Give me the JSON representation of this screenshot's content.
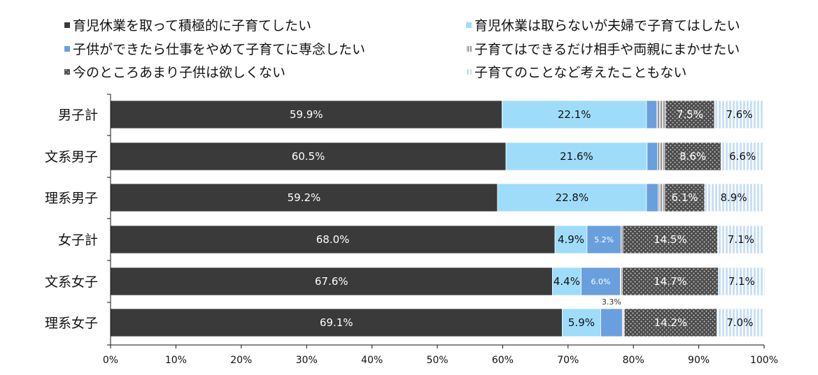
{
  "chart_data": {
    "type": "bar",
    "orientation": "horizontal",
    "stacked": true,
    "percent": true,
    "categories": [
      "男子計",
      "文系男子",
      "理系男子",
      "女子計",
      "文系女子",
      "理系女子"
    ],
    "series": [
      {
        "name": "育児休業を取って積極的に子育てしたい",
        "values": [
          59.9,
          60.5,
          59.2,
          68.0,
          67.6,
          69.1
        ],
        "labels": [
          "59.9%",
          "60.5%",
          "59.2%",
          "68.0%",
          "67.6%",
          "69.1%"
        ],
        "color": "#3a3a3a",
        "pattern": "solid",
        "label_color": "#ffffff"
      },
      {
        "name": "育児休業は取らないが夫婦で子育てはしたい",
        "values": [
          22.1,
          21.6,
          22.8,
          4.9,
          4.4,
          5.9
        ],
        "labels": [
          "22.1%",
          "21.6%",
          "22.8%",
          "4.9%",
          "4.4%",
          "5.9%"
        ],
        "color": "#9fdcfa",
        "pattern": "solid",
        "label_color": "#111111"
      },
      {
        "name": "子供ができたら仕事をやめて子育てに専念したい",
        "values": [
          1.6,
          1.6,
          1.8,
          5.2,
          6.0,
          3.3
        ],
        "labels": [
          "",
          "",
          "",
          "5.2%",
          "6.0%",
          "3.3%"
        ],
        "color": "#6a9fde",
        "pattern": "solid",
        "label_color": "#ffffff"
      },
      {
        "name": "子育てはできるだけ相手や両親にまかせたい",
        "values": [
          1.3,
          1.1,
          1.0,
          0.3,
          0.3,
          0.3
        ],
        "labels": [
          "",
          "",
          "",
          "",
          "",
          ""
        ],
        "color": "#c8c8c8",
        "pattern": "stripes-gray",
        "label_color": "#111111"
      },
      {
        "name": "今のところあまり子供は欲しくない",
        "values": [
          7.5,
          8.6,
          6.1,
          14.5,
          14.7,
          14.2
        ],
        "labels": [
          "7.5%",
          "8.6%",
          "6.1%",
          "14.5%",
          "14.7%",
          "14.2%"
        ],
        "color": "#555555",
        "pattern": "dots",
        "label_color": "#ffffff"
      },
      {
        "name": "子育てのことなど考えたこともない",
        "values": [
          7.6,
          6.6,
          8.9,
          7.1,
          7.1,
          7.0
        ],
        "labels": [
          "7.6%",
          "6.6%",
          "8.9%",
          "7.1%",
          "7.1%",
          "7.0%"
        ],
        "color": "#bcd8f5",
        "pattern": "stripes-blue",
        "label_color": "#111111"
      }
    ],
    "x_ticks": [
      "0%",
      "10%",
      "20%",
      "30%",
      "40%",
      "50%",
      "60%",
      "70%",
      "80%",
      "90%",
      "100%"
    ],
    "xlim": [
      0,
      100
    ],
    "title": "",
    "xlabel": "",
    "ylabel": "",
    "legend_position": "top",
    "grid": false
  }
}
